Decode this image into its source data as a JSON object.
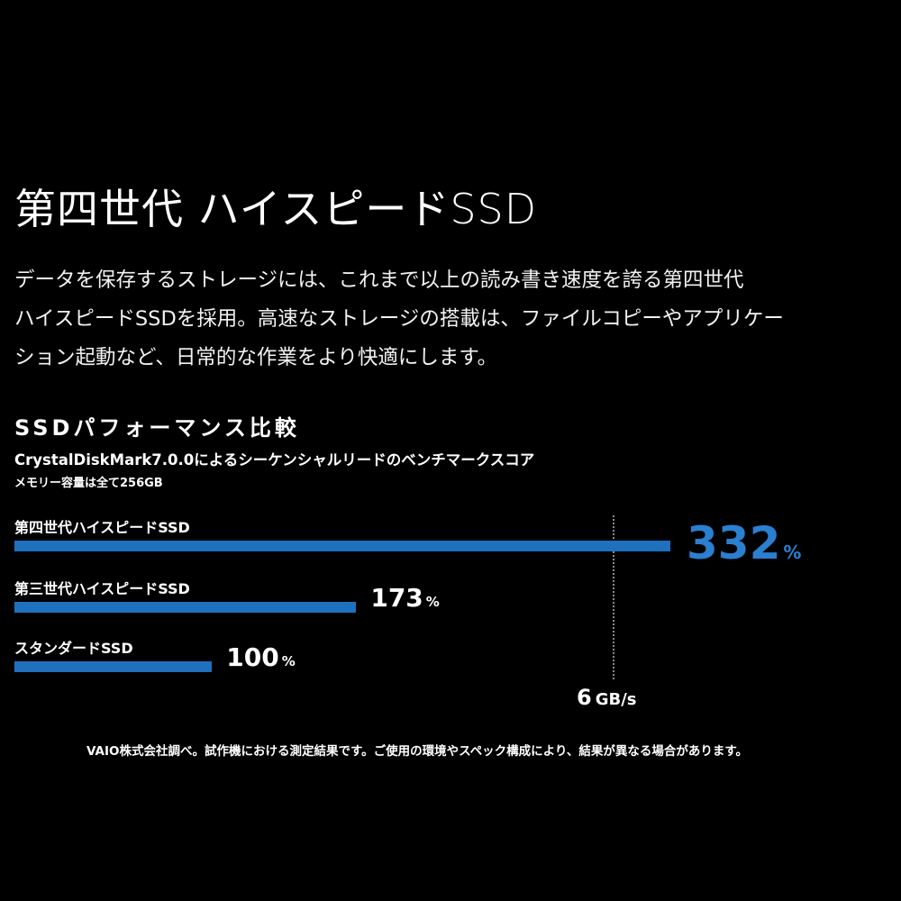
{
  "headline": "第四世代 ハイスピードSSD",
  "body_lines": [
    "データを保存するストレージには、これまで以上の読み書き速度を誇る第四世代",
    "ハイスピードSSDを採用。高速なストレージの搭載は、ファイルコピーやアプリケー",
    "ション起動など、日常的な作業をより快適にします。"
  ],
  "chart_data": {
    "type": "bar",
    "orientation": "horizontal",
    "title": "SSDパフォーマンス比較",
    "subtitle": "CrystalDiskMark7.0.0によるシーケンシャルリードのベンチマークスコア",
    "note": "メモリー容量は全て256GB",
    "categories": [
      "第四世代ハイスピードSSD",
      "第三世代ハイスピードSSD",
      "スタンダードSSD"
    ],
    "values": [
      332,
      173,
      100
    ],
    "value_unit": "%",
    "reference_line": {
      "value_num": "6",
      "value_unit": "GB/s"
    },
    "colors": {
      "bar": "#1f70bd",
      "highlight_value": "#2a7fd0",
      "value": "#ffffff",
      "reference": "#8a8a8a"
    }
  },
  "footnote": "VAIO株式会社調べ。試作機における測定結果です。ご使用の環境やスペック構成により、結果が異なる場合があります。"
}
